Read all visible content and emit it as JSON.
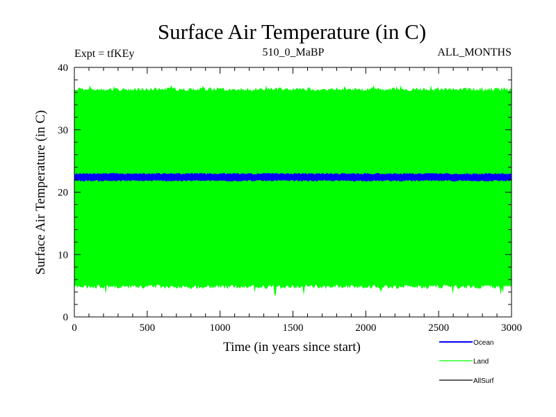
{
  "chart_data": {
    "type": "line",
    "title": "Surface Air Temperature (in C)",
    "header_left": "Expt = tfKEy",
    "header_center": "510_0_MaBP",
    "header_right": "ALL_MONTHS",
    "xlabel": "Time (in years since start)",
    "ylabel": "Surface Air Temperature (in C)",
    "xlim": [
      0,
      3000
    ],
    "ylim": [
      0,
      40
    ],
    "x_ticks": [
      0,
      500,
      1000,
      1500,
      2000,
      2500,
      3000
    ],
    "y_ticks": [
      0,
      10,
      20,
      30,
      40
    ],
    "legend_position": "bottom-right",
    "grid": false,
    "series": [
      {
        "name": "Ocean",
        "color": "#0000ff",
        "description": "seasonal oscillation band",
        "x_range": [
          0,
          3000
        ],
        "band_min": 21.7,
        "band_max": 23.1,
        "mean": 22.4
      },
      {
        "name": "Land",
        "color": "#00ff00",
        "description": "seasonal oscillation band",
        "x_range": [
          0,
          3000
        ],
        "band_min": 4.5,
        "band_max": 36.8,
        "extreme_min": 3.4,
        "extreme_max": 37.2,
        "mean": 20.7
      },
      {
        "name": "AllSurf",
        "color": "#000000",
        "description": "legend entry",
        "x_range": [
          0,
          3000
        ]
      }
    ]
  }
}
